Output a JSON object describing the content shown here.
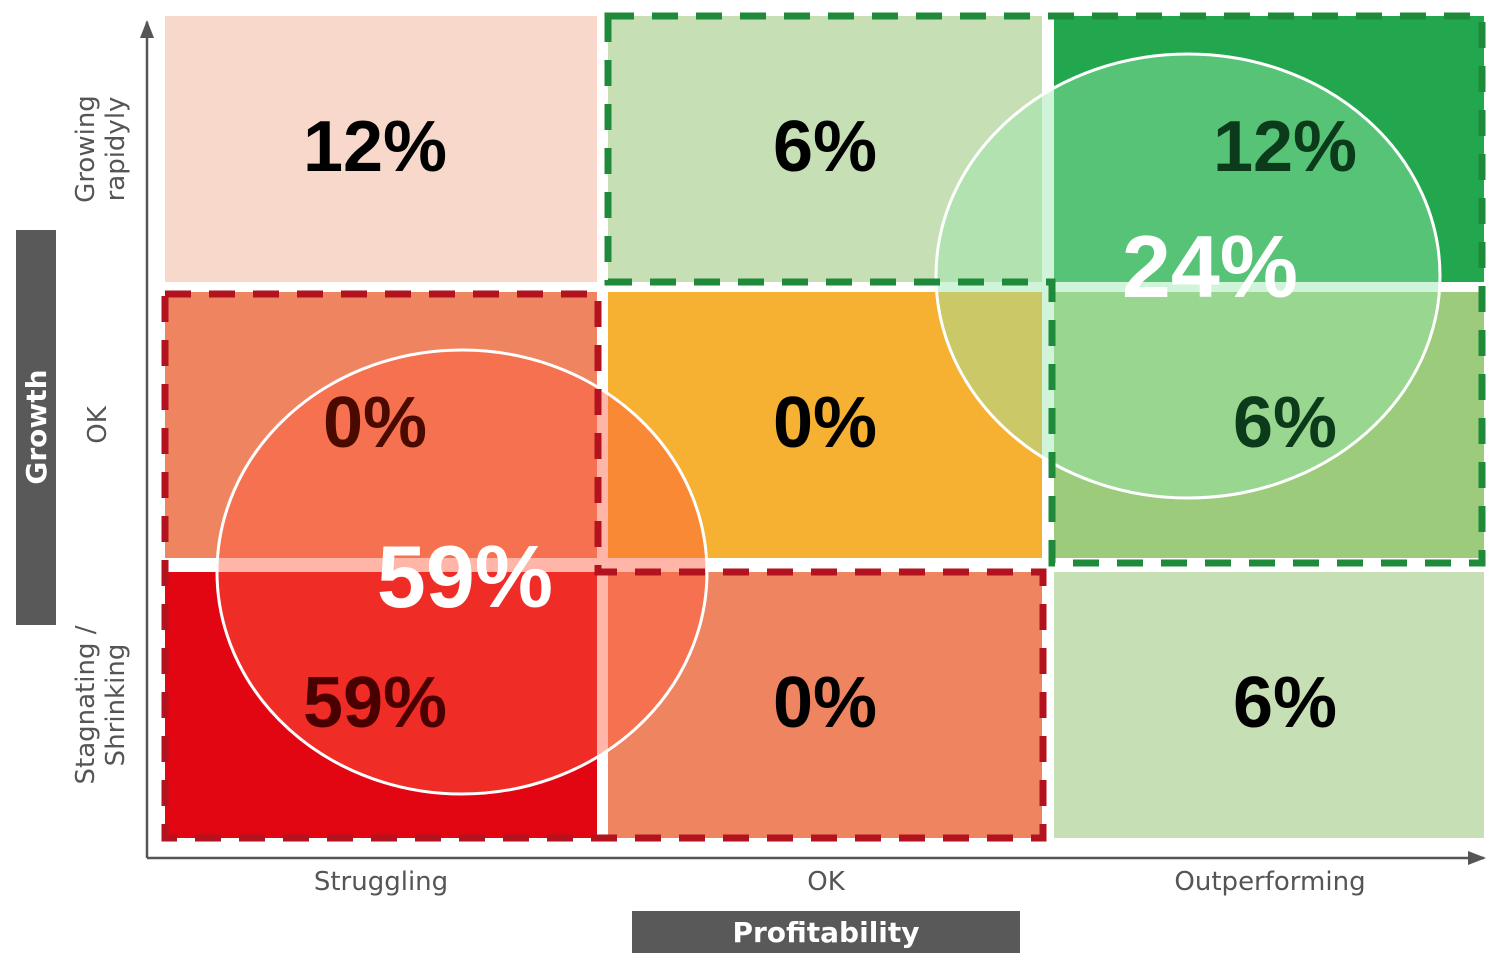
{
  "chart_data": {
    "type": "heatmap",
    "title": "",
    "xlabel": "Profitability",
    "ylabel": "Growth",
    "x_categories": [
      "Struggling",
      "OK",
      "Outperforming"
    ],
    "y_categories": [
      "Growing\nrapidyly",
      "OK",
      "Stagnating /\nShrinking"
    ],
    "cells": [
      {
        "row": 0,
        "col": 0,
        "value": 12,
        "label": "12%",
        "color": "#f8d8ca",
        "text_color": "#000000"
      },
      {
        "row": 0,
        "col": 1,
        "value": 6,
        "label": "6%",
        "color": "#c6dfb4",
        "text_color": "#000000"
      },
      {
        "row": 0,
        "col": 2,
        "value": 12,
        "label": "12%",
        "color": "#23a74e",
        "text_color": "#0b3b1a"
      },
      {
        "row": 1,
        "col": 0,
        "value": 0,
        "label": "0%",
        "color": "#ef8461",
        "text_color": "#4a0a00"
      },
      {
        "row": 1,
        "col": 1,
        "value": 0,
        "label": "0%",
        "color": "#f6b032",
        "text_color": "#000000"
      },
      {
        "row": 1,
        "col": 2,
        "value": 6,
        "label": "6%",
        "color": "#9ccb7c",
        "text_color": "#0b3b1a"
      },
      {
        "row": 2,
        "col": 0,
        "value": 59,
        "label": "59%",
        "color": "#e20613",
        "text_color": "#4a0000"
      },
      {
        "row": 2,
        "col": 1,
        "value": 0,
        "label": "0%",
        "color": "#ef8461",
        "text_color": "#000000"
      },
      {
        "row": 2,
        "col": 2,
        "value": 6,
        "label": "6%",
        "color": "#c6dfb4",
        "text_color": "#000000"
      }
    ],
    "groups": [
      {
        "label": "59%",
        "total": 59,
        "tone": "red",
        "cells": [
          [
            1,
            0
          ],
          [
            2,
            0
          ],
          [
            2,
            1
          ]
        ],
        "border_color": "#b3121f"
      },
      {
        "label": "24%",
        "total": 24,
        "tone": "green",
        "cells": [
          [
            0,
            1
          ],
          [
            0,
            2
          ],
          [
            1,
            2
          ]
        ],
        "border_color": "#1f8a3a"
      }
    ]
  }
}
